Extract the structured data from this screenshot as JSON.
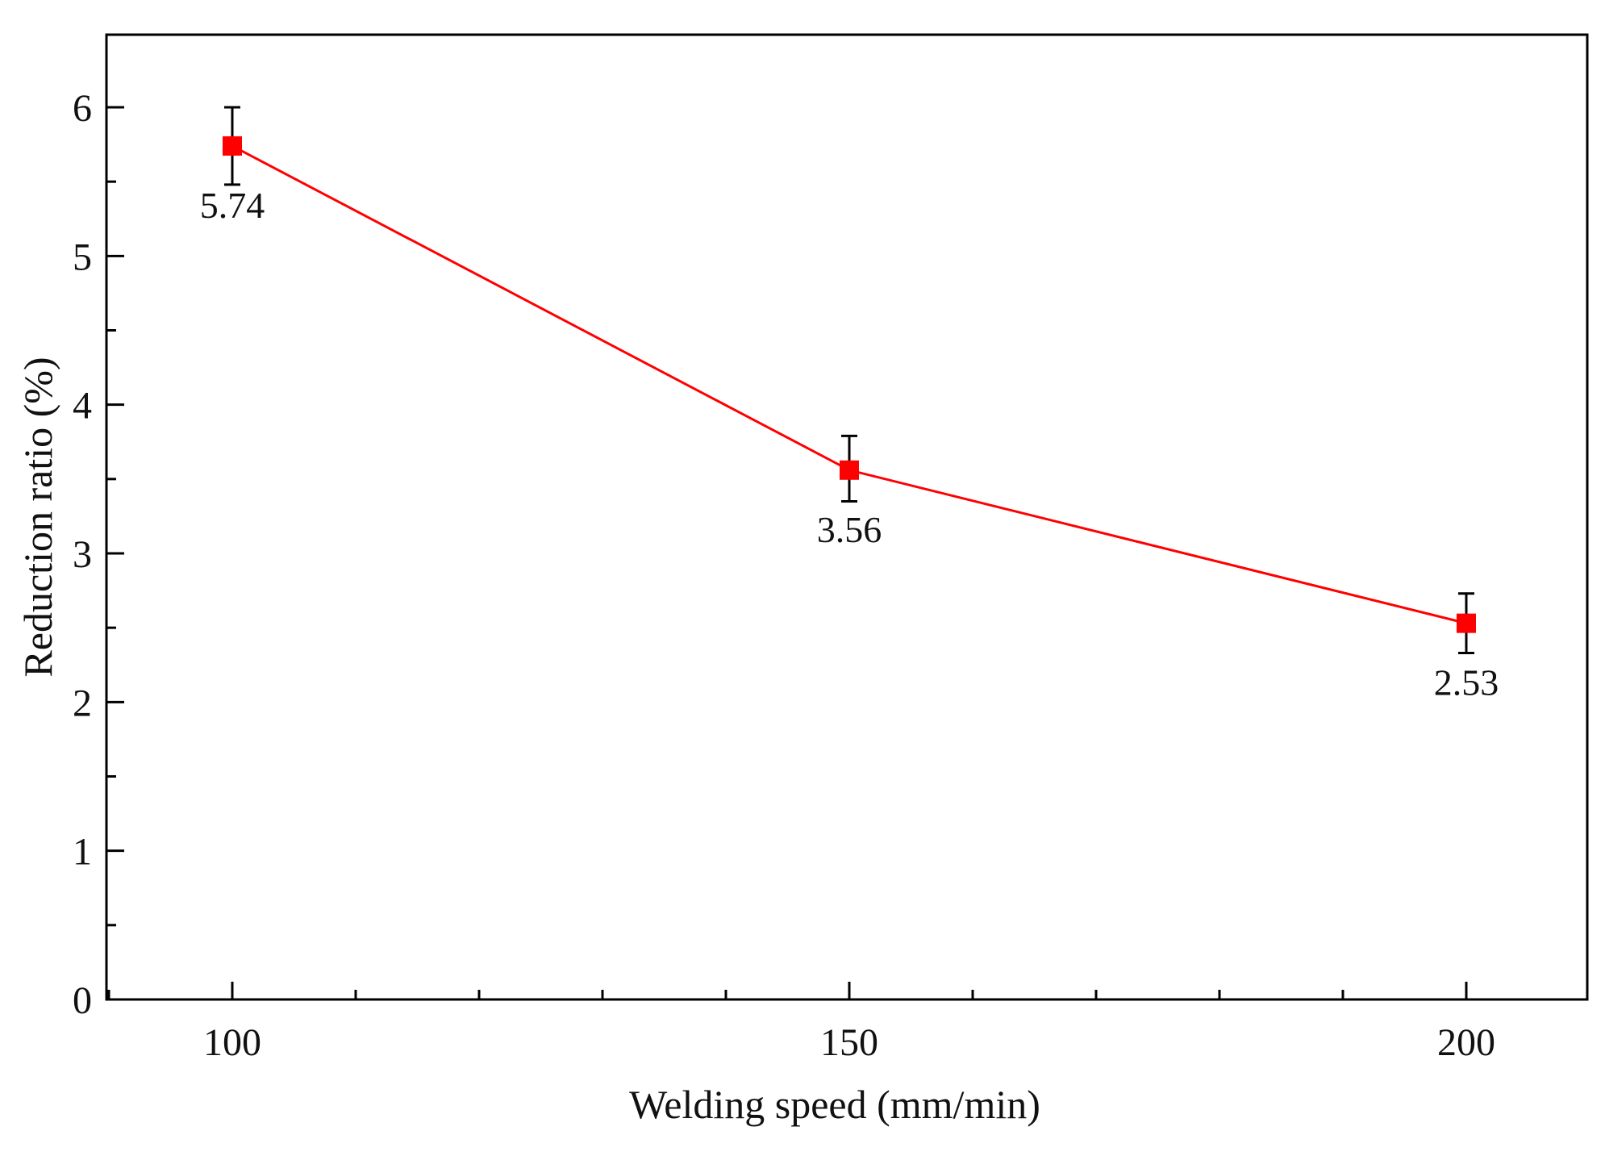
{
  "chart_data": {
    "type": "line",
    "title": "",
    "xlabel": "Welding speed (mm/min)",
    "ylabel": "Reduction ratio (%)",
    "x": [
      100,
      150,
      200
    ],
    "series": [
      {
        "name": "Reduction ratio",
        "values": [
          5.74,
          3.56,
          2.53
        ],
        "error_low": [
          5.48,
          3.35,
          2.33
        ],
        "error_high": [
          6.0,
          3.79,
          2.73
        ],
        "data_labels": [
          "5.74",
          "3.56",
          "2.53"
        ],
        "color": "#ff0000"
      }
    ],
    "xlim": [
      90,
      210
    ],
    "ylim": [
      0,
      6.5
    ],
    "x_ticks": [
      100,
      150,
      200
    ],
    "x_tick_labels": [
      "100",
      "150",
      "200"
    ],
    "x_minor_step": 10,
    "y_ticks": [
      0,
      1,
      2,
      3,
      4,
      5,
      6
    ],
    "y_tick_labels": [
      "0",
      "1",
      "2",
      "3",
      "4",
      "5",
      "6"
    ],
    "y_minor_step": 0.5,
    "grid": false,
    "axis_color": "#000000",
    "line_color": "#ff0000",
    "marker": "square"
  }
}
